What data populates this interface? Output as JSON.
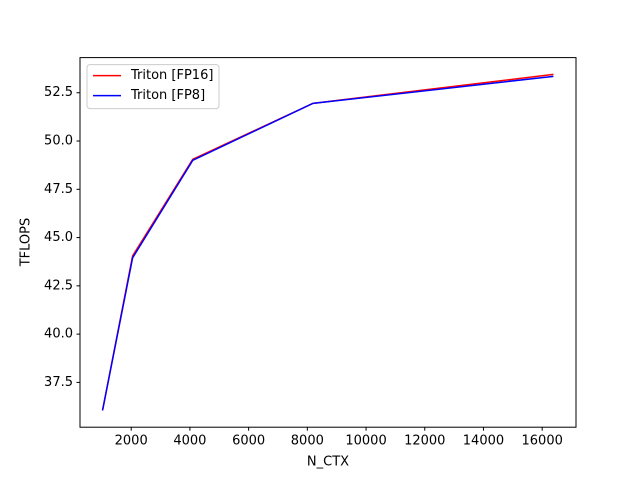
{
  "chart_data": {
    "type": "line",
    "x_label": "N_CTX",
    "y_label": "TFLOPS",
    "x": [
      1024,
      2048,
      4096,
      8192,
      16384
    ],
    "series": [
      {
        "name": "Triton [FP16]",
        "color": "#ff0000",
        "values": [
          36.05,
          44.05,
          49.05,
          51.95,
          53.45
        ]
      },
      {
        "name": "Triton [FP8]",
        "color": "#0000ff",
        "values": [
          36.05,
          43.95,
          49.0,
          51.95,
          53.35
        ]
      }
    ],
    "xlim": [
      256,
      17152
    ],
    "xticks": [
      2000,
      4000,
      6000,
      8000,
      10000,
      12000,
      14000,
      16000
    ],
    "ylim": [
      35.18,
      54.32
    ],
    "yticks": [
      37.5,
      {
        "value": 40,
        "label": "40.0"
      },
      42.5,
      {
        "value": 45,
        "label": "45.0"
      },
      47.5,
      {
        "value": 50,
        "label": "50.0"
      },
      52.5
    ],
    "legend": "upper left",
    "grid": false
  }
}
